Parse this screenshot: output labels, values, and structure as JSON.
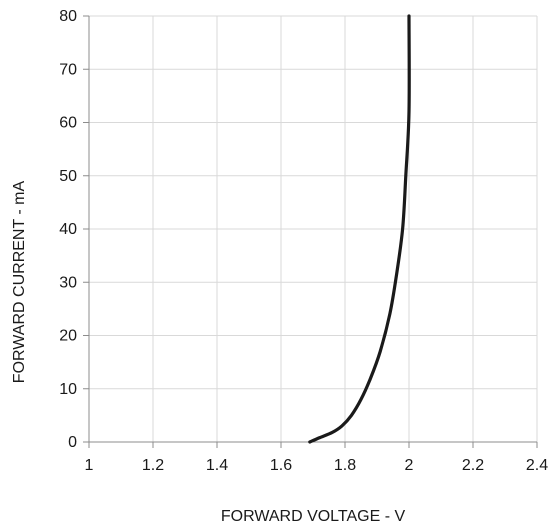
{
  "chart_data": {
    "type": "line",
    "title": "",
    "xlabel": "FORWARD VOLTAGE - V",
    "ylabel": "FORWARD CURRENT - mA",
    "xlim": [
      1,
      2.4
    ],
    "ylim": [
      0,
      80
    ],
    "xticks": [
      1,
      1.2,
      1.4,
      1.6,
      1.8,
      2,
      2.2,
      2.4
    ],
    "yticks": [
      0,
      10,
      20,
      30,
      40,
      50,
      60,
      70,
      80
    ],
    "xtick_labels": [
      "1",
      "1.2",
      "1.4",
      "1.6",
      "1.8",
      "2",
      "2.2",
      "2.4"
    ],
    "ytick_labels": [
      "0",
      "10",
      "20",
      "30",
      "40",
      "50",
      "60",
      "70",
      "80"
    ],
    "grid": true,
    "legend": "none",
    "colors": {
      "line": "#1a1a1a",
      "grid": "#d9d9d9",
      "axis": "#8c8c8c"
    },
    "series": [
      {
        "x": [
          1.69,
          1.72,
          1.76,
          1.79,
          1.82,
          1.85,
          1.88,
          1.91,
          1.94,
          1.96,
          1.98,
          1.99,
          2.0,
          2.0
        ],
        "y": [
          0,
          0.8,
          1.8,
          3.0,
          5.0,
          8.0,
          12.0,
          17.0,
          24.0,
          31.0,
          40.0,
          50.0,
          62.0,
          80.0
        ]
      }
    ]
  }
}
